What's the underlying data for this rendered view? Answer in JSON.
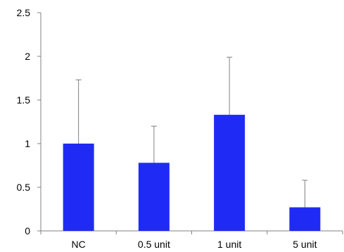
{
  "chart_data": {
    "type": "bar",
    "title": "",
    "xlabel": "",
    "ylabel": "",
    "categories": [
      "NC",
      "0.5 unit",
      "1 unit",
      "5 unit"
    ],
    "values": [
      1.0,
      0.78,
      1.33,
      0.27
    ],
    "error_upper": [
      1.73,
      1.2,
      1.99,
      0.58
    ],
    "ylim": [
      0,
      2.5
    ],
    "yticks": [
      0,
      0.5,
      1,
      1.5,
      2,
      2.5
    ],
    "ytick_labels": [
      "0",
      "0.5",
      "1",
      "1.5",
      "2",
      "2.5"
    ],
    "bar_color": "#1f2bf5",
    "error_color": "#808080",
    "axis_color": "#808080",
    "grid": false,
    "legend": "none"
  }
}
